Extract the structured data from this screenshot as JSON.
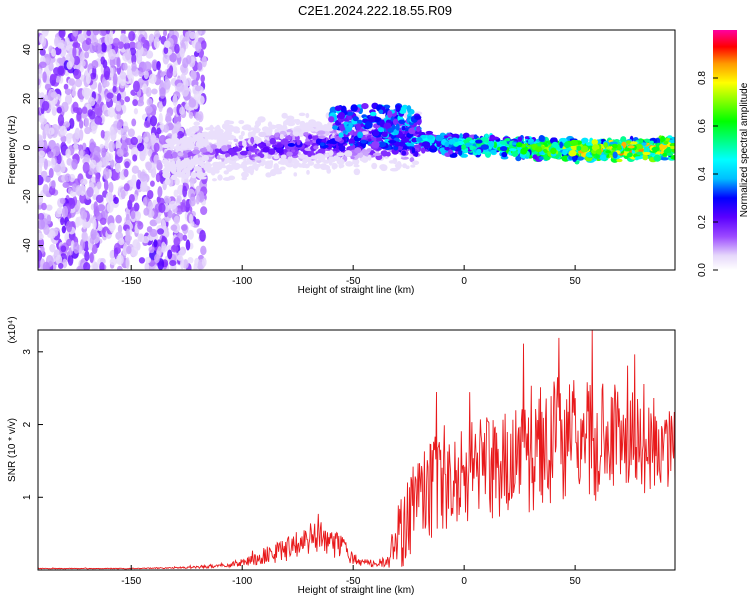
{
  "title": "C2E1.2024.222.18.55.R09",
  "chart_data": [
    {
      "type": "heatmap",
      "xlabel": "Height of straight line (km)",
      "ylabel": "Frequency (Hz)",
      "xlim": [
        -192,
        95
      ],
      "ylim": [
        -50,
        48
      ],
      "xticks": [
        -150,
        -100,
        -50,
        0,
        50
      ],
      "yticks": [
        -40,
        -20,
        0,
        20,
        40
      ],
      "colorbar": {
        "label": "Normalized spectral amplitude",
        "range": [
          0.0,
          1.0
        ],
        "ticks": [
          0.0,
          0.2,
          0.4,
          0.6,
          0.8
        ],
        "tick_labels": [
          "0.0",
          "0.2",
          "0.4",
          "0.6",
          "0.8"
        ],
        "colormap": [
          "#ffffff",
          "#d9c6f7",
          "#8a2be2",
          "#5a00ff",
          "#0000ff",
          "#00bfff",
          "#00ffff",
          "#00ff80",
          "#00ff00",
          "#80ff00",
          "#ffff00",
          "#ffa500",
          "#ff0000",
          "#ff00a0"
        ]
      },
      "ridge": {
        "x": [
          -125,
          -100,
          -75,
          -50,
          -25,
          0,
          25,
          50,
          75,
          95
        ],
        "center_hz": [
          -3,
          -1,
          1,
          2,
          3,
          1,
          0,
          -1,
          -1,
          0
        ],
        "amplitude": [
          0.15,
          0.25,
          0.3,
          0.35,
          0.45,
          0.55,
          0.65,
          0.8,
          0.85,
          0.8
        ]
      }
    },
    {
      "type": "line",
      "xlabel": "Height of straight line (km)",
      "ylabel": "SNR (10 * v/v)",
      "y_multiplier": "(x10⁴)",
      "xlim": [
        -192,
        95
      ],
      "ylim": [
        0,
        3.3
      ],
      "xticks": [
        -150,
        -100,
        -50,
        0,
        50
      ],
      "yticks": [
        1,
        2,
        3
      ],
      "series": [
        {
          "color": "#e8191b",
          "x": [
            -192,
            -170,
            -150,
            -130,
            -120,
            -110,
            -100,
            -90,
            -80,
            -75,
            -70,
            -65,
            -60,
            -55,
            -50,
            -45,
            -40,
            -35,
            -32,
            -30,
            -28,
            -25,
            -22,
            -20,
            -15,
            -10,
            -5,
            0,
            5,
            10,
            15,
            20,
            25,
            30,
            35,
            40,
            45,
            50,
            55,
            60,
            65,
            70,
            75,
            80,
            85,
            90,
            95
          ],
          "y": [
            0.02,
            0.02,
            0.02,
            0.03,
            0.04,
            0.06,
            0.1,
            0.18,
            0.3,
            0.35,
            0.42,
            0.45,
            0.38,
            0.3,
            0.15,
            0.1,
            0.08,
            0.12,
            0.3,
            0.55,
            0.6,
            0.65,
            0.9,
            1.0,
            1.1,
            1.2,
            1.25,
            1.3,
            1.35,
            1.4,
            1.45,
            1.5,
            1.55,
            1.6,
            1.65,
            1.7,
            1.75,
            1.8,
            1.8,
            1.75,
            1.8,
            1.85,
            1.8,
            1.75,
            1.7,
            1.65,
            1.7
          ],
          "fluctuation": [
            0.005,
            0.005,
            0.005,
            0.01,
            0.02,
            0.03,
            0.05,
            0.1,
            0.18,
            0.2,
            0.22,
            0.22,
            0.2,
            0.16,
            0.08,
            0.06,
            0.05,
            0.08,
            0.3,
            0.5,
            0.6,
            0.6,
            0.7,
            0.7,
            0.7,
            0.7,
            0.7,
            0.7,
            0.7,
            0.7,
            0.75,
            0.75,
            0.8,
            0.8,
            0.8,
            0.8,
            0.8,
            0.9,
            0.85,
            0.8,
            0.8,
            0.8,
            0.75,
            0.75,
            0.7,
            0.7,
            0.6
          ]
        }
      ]
    }
  ]
}
